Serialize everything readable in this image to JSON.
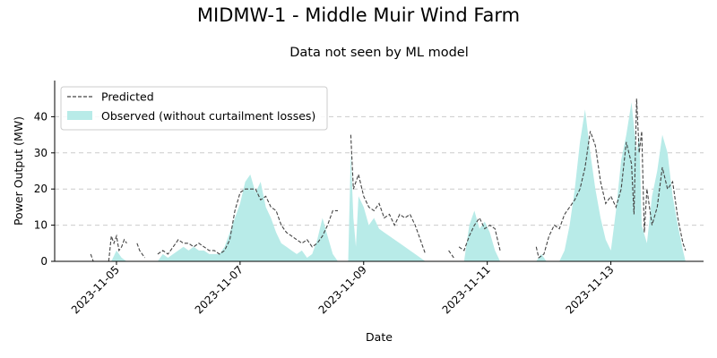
{
  "chart_data": {
    "type": "area",
    "title": "MIDMW-1 - Middle Muir Wind Farm",
    "subtitle": "Data not seen by ML model",
    "xlabel": "Date",
    "ylabel": "Power Output (MW)",
    "xlim": [
      "2023-11-04T00:00",
      "2023-11-14T12:00"
    ],
    "ylim": [
      0,
      50
    ],
    "x_ticks": [
      "2023-11-05",
      "2023-11-07",
      "2023-11-09",
      "2023-11-11",
      "2023-11-13"
    ],
    "y_ticks": [
      0,
      10,
      20,
      30,
      40
    ],
    "grid": "y, dashed",
    "legend_position": "top-left",
    "colors": {
      "observed_fill": "#b8ebe8",
      "predicted_line": "#444444",
      "grid": "#cccccc"
    },
    "series": [
      {
        "name": "Predicted",
        "style": "dashed-line",
        "segments": [
          [
            [
              "2023-11-04T14:00",
              2
            ],
            [
              "2023-11-04T15:00",
              0
            ]
          ],
          [
            [
              "2023-11-04T21:00",
              0
            ],
            [
              "2023-11-04T22:00",
              7
            ],
            [
              "2023-11-04T23:00",
              5
            ],
            [
              "2023-11-05T00:00",
              7
            ],
            [
              "2023-11-05T01:00",
              3
            ],
            [
              "2023-11-05T02:00",
              4
            ],
            [
              "2023-11-05T03:00",
              6
            ],
            [
              "2023-11-05T04:00",
              5
            ]
          ],
          [
            [
              "2023-11-05T08:00",
              5
            ],
            [
              "2023-11-05T09:00",
              3
            ],
            [
              "2023-11-05T11:00",
              1
            ]
          ],
          [
            [
              "2023-11-05T16:00",
              2
            ],
            [
              "2023-11-05T18:00",
              3
            ],
            [
              "2023-11-05T20:00",
              2
            ],
            [
              "2023-11-05T22:00",
              4
            ],
            [
              "2023-11-06T00:00",
              6
            ],
            [
              "2023-11-06T02:00",
              5
            ],
            [
              "2023-11-06T04:00",
              5
            ],
            [
              "2023-11-06T06:00",
              4
            ],
            [
              "2023-11-06T08:00",
              5
            ],
            [
              "2023-11-06T10:00",
              4
            ],
            [
              "2023-11-06T12:00",
              3
            ],
            [
              "2023-11-06T14:00",
              3
            ],
            [
              "2023-11-06T16:00",
              2
            ],
            [
              "2023-11-06T18:00",
              3
            ],
            [
              "2023-11-06T20:00",
              6
            ],
            [
              "2023-11-06T22:00",
              14
            ],
            [
              "2023-11-07T00:00",
              19
            ],
            [
              "2023-11-07T02:00",
              20
            ],
            [
              "2023-11-07T04:00",
              20
            ],
            [
              "2023-11-07T06:00",
              20
            ],
            [
              "2023-11-07T08:00",
              17
            ],
            [
              "2023-11-07T10:00",
              18
            ],
            [
              "2023-11-07T12:00",
              15
            ],
            [
              "2023-11-07T14:00",
              14
            ],
            [
              "2023-11-07T16:00",
              10
            ],
            [
              "2023-11-07T18:00",
              8
            ],
            [
              "2023-11-07T20:00",
              7
            ],
            [
              "2023-11-07T22:00",
              6
            ],
            [
              "2023-11-08T00:00",
              5
            ],
            [
              "2023-11-08T02:00",
              6
            ],
            [
              "2023-11-08T04:00",
              4
            ],
            [
              "2023-11-08T06:00",
              5
            ],
            [
              "2023-11-08T08:00",
              7
            ],
            [
              "2023-11-08T10:00",
              10
            ],
            [
              "2023-11-08T12:00",
              14
            ],
            [
              "2023-11-08T14:00",
              14
            ]
          ],
          [
            [
              "2023-11-08T19:00",
              35
            ],
            [
              "2023-11-08T20:00",
              20
            ],
            [
              "2023-11-08T22:00",
              24
            ],
            [
              "2023-11-09T00:00",
              18
            ],
            [
              "2023-11-09T02:00",
              15
            ],
            [
              "2023-11-09T04:00",
              14
            ],
            [
              "2023-11-09T06:00",
              16
            ],
            [
              "2023-11-09T08:00",
              12
            ],
            [
              "2023-11-09T10:00",
              13
            ],
            [
              "2023-11-09T12:00",
              10
            ],
            [
              "2023-11-09T14:00",
              13
            ],
            [
              "2023-11-09T16:00",
              12
            ],
            [
              "2023-11-09T18:00",
              13
            ],
            [
              "2023-11-09T20:00",
              10
            ],
            [
              "2023-11-09T22:00",
              6
            ],
            [
              "2023-11-10T00:00",
              2
            ]
          ],
          [
            [
              "2023-11-10T09:00",
              3
            ],
            [
              "2023-11-10T11:00",
              1
            ]
          ],
          [
            [
              "2023-11-10T13:00",
              4
            ],
            [
              "2023-11-10T15:00",
              3
            ],
            [
              "2023-11-10T17:00",
              7
            ],
            [
              "2023-11-10T19:00",
              10
            ],
            [
              "2023-11-10T21:00",
              12
            ],
            [
              "2023-11-10T23:00",
              9
            ],
            [
              "2023-11-11T01:00",
              10
            ],
            [
              "2023-11-11T03:00",
              9
            ],
            [
              "2023-11-11T05:00",
              3
            ]
          ],
          [
            [
              "2023-11-11T19:00",
              4
            ],
            [
              "2023-11-11T20:00",
              1
            ],
            [
              "2023-11-11T22:00",
              2
            ],
            [
              "2023-11-12T00:00",
              7
            ],
            [
              "2023-11-12T02:00",
              10
            ],
            [
              "2023-11-12T04:00",
              9
            ],
            [
              "2023-11-12T06:00",
              13
            ],
            [
              "2023-11-12T08:00",
              15
            ],
            [
              "2023-11-12T10:00",
              17
            ],
            [
              "2023-11-12T12:00",
              20
            ],
            [
              "2023-11-12T14:00",
              26
            ],
            [
              "2023-11-12T16:00",
              36
            ],
            [
              "2023-11-12T18:00",
              32
            ],
            [
              "2023-11-12T20:00",
              22
            ],
            [
              "2023-11-12T22:00",
              16
            ],
            [
              "2023-11-13T00:00",
              18
            ],
            [
              "2023-11-13T02:00",
              15
            ],
            [
              "2023-11-13T04:00",
              20
            ],
            [
              "2023-11-13T06:00",
              33
            ],
            [
              "2023-11-13T08:00",
              27
            ],
            [
              "2023-11-13T09:00",
              13
            ],
            [
              "2023-11-13T10:00",
              45
            ],
            [
              "2023-11-13T11:00",
              30
            ],
            [
              "2023-11-13T12:00",
              36
            ],
            [
              "2023-11-13T13:00",
              8
            ],
            [
              "2023-11-13T14:00",
              20
            ],
            [
              "2023-11-13T16:00",
              10
            ],
            [
              "2023-11-13T18:00",
              15
            ],
            [
              "2023-11-13T20:00",
              26
            ],
            [
              "2023-11-13T22:00",
              20
            ],
            [
              "2023-11-14T00:00",
              22
            ],
            [
              "2023-11-14T02:00",
              12
            ],
            [
              "2023-11-14T04:00",
              5
            ],
            [
              "2023-11-14T05:00",
              3
            ]
          ]
        ]
      },
      {
        "name": "Observed (without curtailment losses)",
        "style": "filled-area",
        "segments": [
          [
            [
              "2023-11-04T22:00",
              0
            ],
            [
              "2023-11-05T00:00",
              3
            ],
            [
              "2023-11-05T02:00",
              1
            ],
            [
              "2023-11-05T04:00",
              0
            ]
          ],
          [
            [
              "2023-11-05T16:00",
              0
            ],
            [
              "2023-11-05T18:00",
              2
            ],
            [
              "2023-11-05T20:00",
              1
            ],
            [
              "2023-11-05T22:00",
              2
            ],
            [
              "2023-11-06T00:00",
              3
            ],
            [
              "2023-11-06T02:00",
              4
            ],
            [
              "2023-11-06T04:00",
              3
            ],
            [
              "2023-11-06T06:00",
              4
            ],
            [
              "2023-11-06T08:00",
              3
            ],
            [
              "2023-11-06T10:00",
              3
            ],
            [
              "2023-11-06T12:00",
              2
            ],
            [
              "2023-11-06T14:00",
              2
            ],
            [
              "2023-11-06T16:00",
              2
            ],
            [
              "2023-11-06T18:00",
              4
            ],
            [
              "2023-11-06T20:00",
              8
            ],
            [
              "2023-11-06T22:00",
              12
            ],
            [
              "2023-11-07T00:00",
              16
            ],
            [
              "2023-11-07T02:00",
              22
            ],
            [
              "2023-11-07T04:00",
              24
            ],
            [
              "2023-11-07T06:00",
              19
            ],
            [
              "2023-11-07T08:00",
              22
            ],
            [
              "2023-11-07T10:00",
              15
            ],
            [
              "2023-11-07T12:00",
              12
            ],
            [
              "2023-11-07T14:00",
              8
            ],
            [
              "2023-11-07T16:00",
              5
            ],
            [
              "2023-11-07T18:00",
              4
            ],
            [
              "2023-11-07T20:00",
              3
            ],
            [
              "2023-11-07T22:00",
              2
            ],
            [
              "2023-11-08T00:00",
              3
            ],
            [
              "2023-11-08T02:00",
              1
            ],
            [
              "2023-11-08T04:00",
              2
            ],
            [
              "2023-11-08T06:00",
              6
            ],
            [
              "2023-11-08T08:00",
              12
            ],
            [
              "2023-11-08T10:00",
              7
            ],
            [
              "2023-11-08T12:00",
              2
            ],
            [
              "2023-11-08T14:00",
              0
            ]
          ],
          [
            [
              "2023-11-08T18:00",
              0
            ],
            [
              "2023-11-08T19:00",
              30
            ],
            [
              "2023-11-08T20:00",
              12
            ],
            [
              "2023-11-08T21:00",
              4
            ],
            [
              "2023-11-08T22:00",
              18
            ],
            [
              "2023-11-09T00:00",
              15
            ],
            [
              "2023-11-09T02:00",
              10
            ],
            [
              "2023-11-09T04:00",
              12
            ],
            [
              "2023-11-09T06:00",
              9
            ],
            [
              "2023-11-09T08:00",
              8
            ],
            [
              "2023-11-09T10:00",
              7
            ],
            [
              "2023-11-09T12:00",
              6
            ],
            [
              "2023-11-09T14:00",
              5
            ],
            [
              "2023-11-09T16:00",
              4
            ],
            [
              "2023-11-09T18:00",
              3
            ],
            [
              "2023-11-09T20:00",
              2
            ],
            [
              "2023-11-09T22:00",
              1
            ],
            [
              "2023-11-10T00:00",
              0
            ]
          ],
          [
            [
              "2023-11-10T15:00",
              0
            ],
            [
              "2023-11-10T17:00",
              10
            ],
            [
              "2023-11-10T19:00",
              14
            ],
            [
              "2023-11-10T21:00",
              9
            ],
            [
              "2023-11-10T23:00",
              11
            ],
            [
              "2023-11-11T01:00",
              8
            ],
            [
              "2023-11-11T03:00",
              3
            ],
            [
              "2023-11-11T05:00",
              0
            ]
          ],
          [
            [
              "2023-11-11T19:00",
              0
            ],
            [
              "2023-11-11T21:00",
              2
            ],
            [
              "2023-11-11T23:00",
              0
            ]
          ],
          [
            [
              "2023-11-12T04:00",
              0
            ],
            [
              "2023-11-12T06:00",
              3
            ],
            [
              "2023-11-12T08:00",
              10
            ],
            [
              "2023-11-12T10:00",
              20
            ],
            [
              "2023-11-12T12:00",
              33
            ],
            [
              "2023-11-12T14:00",
              42
            ],
            [
              "2023-11-12T16:00",
              30
            ],
            [
              "2023-11-12T18:00",
              20
            ],
            [
              "2023-11-12T20:00",
              12
            ],
            [
              "2023-11-12T22:00",
              6
            ],
            [
              "2023-11-13T00:00",
              3
            ],
            [
              "2023-11-13T02:00",
              14
            ],
            [
              "2023-11-13T04:00",
              28
            ],
            [
              "2023-11-13T06:00",
              35
            ],
            [
              "2023-11-13T08:00",
              44
            ],
            [
              "2023-11-13T10:00",
              30
            ],
            [
              "2023-11-13T11:00",
              35
            ],
            [
              "2023-11-13T12:00",
              10
            ],
            [
              "2023-11-13T14:00",
              5
            ],
            [
              "2023-11-13T16:00",
              18
            ],
            [
              "2023-11-13T18:00",
              25
            ],
            [
              "2023-11-13T20:00",
              35
            ],
            [
              "2023-11-13T22:00",
              30
            ],
            [
              "2023-11-14T00:00",
              18
            ],
            [
              "2023-11-14T02:00",
              10
            ],
            [
              "2023-11-14T04:00",
              3
            ],
            [
              "2023-11-14T05:00",
              0
            ]
          ]
        ]
      }
    ]
  }
}
